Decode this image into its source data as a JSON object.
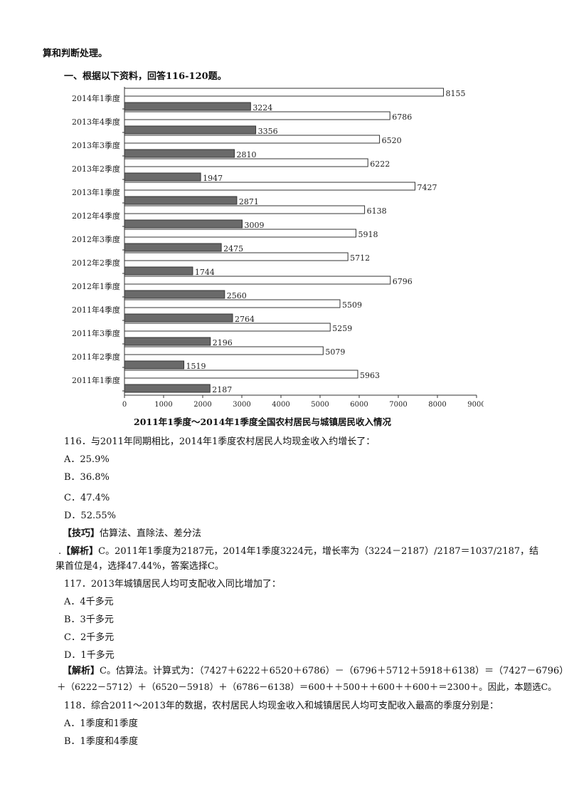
{
  "header": {
    "intro": "算和判断处理。",
    "section_title": "一、根据以下资料，回答116-120题。"
  },
  "chart_data": {
    "type": "bar",
    "orientation": "horizontal",
    "title": "2011年1季度～2014年1季度全国农村居民与城镇居民收入情况",
    "categories": [
      "2014年1季度",
      "2013年4季度",
      "2013年3季度",
      "2013年2季度",
      "2013年1季度",
      "2012年4季度",
      "2012年3季度",
      "2012年2季度",
      "2012年1季度",
      "2011年4季度",
      "2011年3季度",
      "2011年2季度",
      "2011年1季度"
    ],
    "series": [
      {
        "values": [
          8155,
          6786,
          6520,
          6222,
          7427,
          6138,
          5918,
          5712,
          6796,
          5509,
          5259,
          5079,
          5963
        ],
        "color": "#ffffff"
      },
      {
        "values": [
          3224,
          3356,
          2810,
          1947,
          2871,
          3009,
          2475,
          1744,
          2560,
          2764,
          2196,
          1519,
          2187
        ],
        "color": "#6a6a6a"
      }
    ],
    "xlim": [
      0,
      9000
    ],
    "xticks": [
      "0",
      "1000",
      "2000",
      "3000",
      "4000",
      "5000",
      "6000",
      "7000",
      "8000",
      "9000"
    ],
    "grid": false
  },
  "questions": {
    "q116": {
      "stem": "116．与2011年同期相比，2014年1季度农村居民人均现金收入约增长了：",
      "a": "A．25.9%",
      "b": "B．36.8%",
      "c": "C．47.4%",
      "d": "D．52.55%",
      "tip_label": "【技巧】",
      "tip_text": "估算法、直除法、差分法",
      "ana_prefix": ".",
      "ana_label": "【解析】",
      "ana_line1": "C。2011年1季度为2187元，2014年1季度3224元，增长率为（3224－2187）/2187＝1037/2187，结",
      "ana_line2": "果首位是4，选择47.44%，答案选择C。"
    },
    "q117": {
      "stem": "117．2013年城镇居民人均可支配收入同比增加了：",
      "a": "A．4千多元",
      "b": "B．3千多元",
      "c": "C．2千多元",
      "d": "D．1千多元",
      "ana_label": "【解析】",
      "ana_line1": "C。估算法。计算式为：（7427＋6222＋6520＋6786）－（6796＋5712＋5918＋6138）＝（7427－6796）",
      "ana_line2": "＋（6222－5712）＋（6520－5918）＋（6786－6138）＝600＋＋500＋＋600＋＋600＋＝2300＋。因此，本题选C。"
    },
    "q118": {
      "stem": "118．综合2011～2013年的数据，农村居民人均现金收入和城镇居民人均可支配收入最高的季度分别是：",
      "a": "A．1季度和1季度",
      "b": "B．1季度和4季度"
    }
  }
}
